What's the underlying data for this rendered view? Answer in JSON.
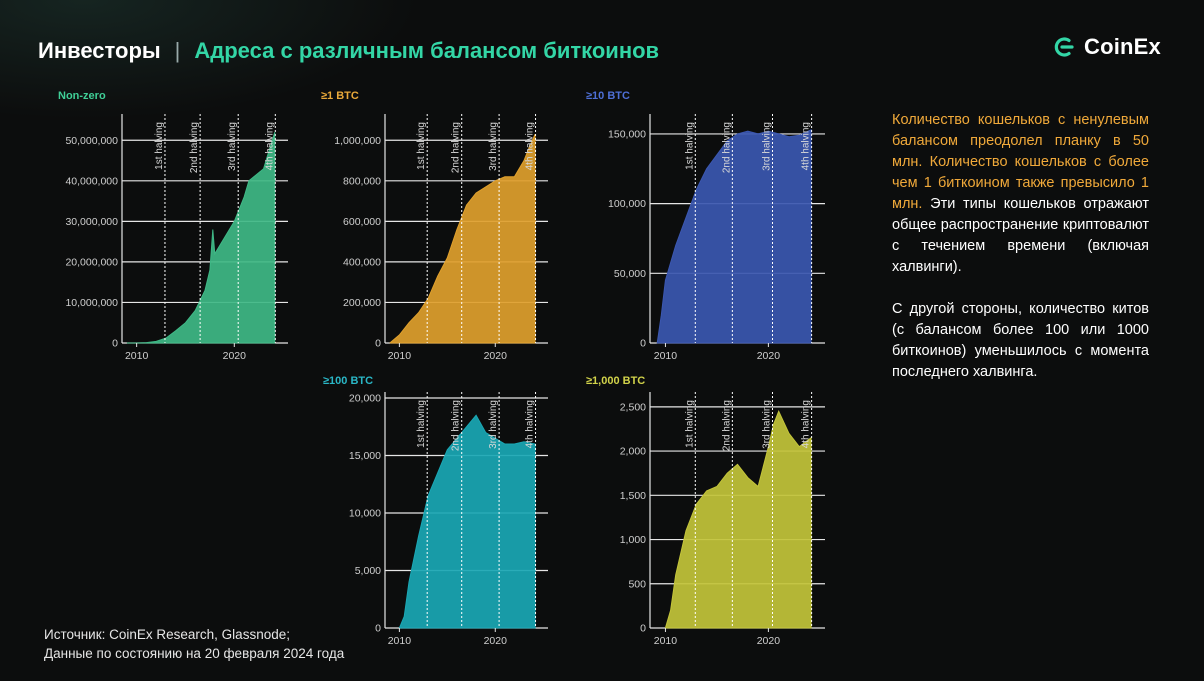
{
  "header": {
    "left": "Инвесторы",
    "separator": "|",
    "right": "Адреса с различным балансом биткоинов"
  },
  "logo": {
    "text": "CoinEx"
  },
  "description": {
    "p1_highlight": "Количество кошельков с ненулевым балансом преодолел планку в 50 млн. Количество кошельков с более чем 1 биткоином также превысило 1 млн.",
    "p1_rest": "Эти типы кошельков отражают общее распространение криптовалют с течением времени (включая халвинги).",
    "p2": "С другой стороны, количество китов (с балансом более 100 или 1000 биткоинов) уменьшилось с момента последнего халвинга."
  },
  "source": {
    "line1": "Источник: CoinEx Research, Glassnode;",
    "line2": "Данные по состоянию на 20 февраля 2024 года"
  },
  "colors": {
    "accent": "#33d6a6",
    "highlight": "#f0a93a"
  },
  "chart_data": [
    {
      "type": "area",
      "title": "Non-zero",
      "color": "#3fb886",
      "xlim": [
        2008.5,
        2025.5
      ],
      "ylim": [
        0,
        55000000
      ],
      "yticks": [
        0,
        10000000,
        20000000,
        30000000,
        40000000,
        50000000
      ],
      "ytick_labels": [
        "0",
        "10,000,000",
        "20,000,000",
        "30,000,000",
        "40,000,000",
        "50,000,000"
      ],
      "xticks": [
        2010,
        2020
      ],
      "halvings": [
        {
          "x": 2012.9,
          "label": "1st halving"
        },
        {
          "x": 2016.5,
          "label": "2nd halving"
        },
        {
          "x": 2020.4,
          "label": "3rd halving"
        },
        {
          "x": 2024.2,
          "label": "4th halving"
        }
      ],
      "x": [
        2009.0,
        2010.0,
        2011.0,
        2012.0,
        2013.0,
        2014.0,
        2015.0,
        2016.0,
        2017.0,
        2017.5,
        2017.8,
        2018.0,
        2018.5,
        2019.0,
        2020.0,
        2021.0,
        2021.5,
        2022.0,
        2023.0,
        2023.5,
        2024.15
      ],
      "values": [
        0,
        10000,
        100000,
        400000,
        1200000,
        3000000,
        5000000,
        8000000,
        13000000,
        18000000,
        28000000,
        22000000,
        24000000,
        26000000,
        30000000,
        36000000,
        40000000,
        41000000,
        43000000,
        47000000,
        52000000
      ]
    },
    {
      "type": "area",
      "title": "≥1 BTC",
      "color": "#e0a02c",
      "xlim": [
        2008.5,
        2025.5
      ],
      "ylim": [
        0,
        1100000
      ],
      "yticks": [
        0,
        200000,
        400000,
        600000,
        800000,
        1000000
      ],
      "ytick_labels": [
        "0",
        "200,000",
        "400,000",
        "600,000",
        "800,000",
        "1,000,000"
      ],
      "xticks": [
        2010,
        2020
      ],
      "halvings": [
        {
          "x": 2012.9,
          "label": "1st halving"
        },
        {
          "x": 2016.5,
          "label": "2nd halving"
        },
        {
          "x": 2020.4,
          "label": "3rd halving"
        },
        {
          "x": 2024.2,
          "label": "4th halving"
        }
      ],
      "x": [
        2009.0,
        2010.0,
        2011.0,
        2012.0,
        2013.0,
        2014.0,
        2015.0,
        2016.0,
        2017.0,
        2018.0,
        2019.0,
        2020.0,
        2021.0,
        2022.0,
        2023.0,
        2023.5,
        2024.15
      ],
      "values": [
        0,
        40000,
        100000,
        150000,
        220000,
        330000,
        420000,
        560000,
        680000,
        740000,
        770000,
        800000,
        820000,
        820000,
        900000,
        960000,
        1030000
      ]
    },
    {
      "type": "area",
      "title": "≥10 BTC",
      "color": "#3b57b0",
      "xlim": [
        2008.5,
        2025.5
      ],
      "ylim": [
        0,
        160000
      ],
      "yticks": [
        0,
        50000,
        100000,
        150000
      ],
      "ytick_labels": [
        "0",
        "50,000",
        "100,000",
        "150,000"
      ],
      "xticks": [
        2010,
        2020
      ],
      "halvings": [
        {
          "x": 2012.9,
          "label": "1st halving"
        },
        {
          "x": 2016.5,
          "label": "2nd halving"
        },
        {
          "x": 2020.4,
          "label": "3rd halving"
        },
        {
          "x": 2024.2,
          "label": "4th halving"
        }
      ],
      "x": [
        2009.2,
        2009.6,
        2010.0,
        2011.0,
        2012.0,
        2013.0,
        2014.0,
        2015.0,
        2016.0,
        2017.0,
        2018.0,
        2019.0,
        2020.0,
        2021.0,
        2022.0,
        2023.0,
        2024.15
      ],
      "values": [
        0,
        20000,
        45000,
        70000,
        90000,
        110000,
        125000,
        135000,
        145000,
        150000,
        152000,
        150000,
        152000,
        150000,
        148000,
        149000,
        153000
      ]
    },
    {
      "type": "area",
      "title": "≥100 BTC",
      "color": "#1aa7b4",
      "xlim": [
        2008.5,
        2025.5
      ],
      "ylim": [
        0,
        20000
      ],
      "yticks": [
        0,
        5000,
        10000,
        15000,
        20000
      ],
      "ytick_labels": [
        "0",
        "5,000",
        "10,000",
        "15,000",
        "20,000"
      ],
      "xticks": [
        2010,
        2020
      ],
      "halvings": [
        {
          "x": 2012.9,
          "label": "1st halving"
        },
        {
          "x": 2016.5,
          "label": "2nd halving"
        },
        {
          "x": 2020.4,
          "label": "3rd halving"
        },
        {
          "x": 2024.2,
          "label": "4th halving"
        }
      ],
      "x": [
        2010.0,
        2010.5,
        2011.0,
        2012.0,
        2013.0,
        2014.0,
        2015.0,
        2016.0,
        2017.0,
        2018.0,
        2019.0,
        2020.0,
        2021.0,
        2022.0,
        2023.0,
        2024.15
      ],
      "values": [
        0,
        1000,
        4000,
        8000,
        11500,
        13500,
        15500,
        16500,
        17500,
        18500,
        17000,
        16500,
        16000,
        16000,
        16200,
        16000
      ]
    },
    {
      "type": "area",
      "title": "≥1,000 BTC",
      "color": "#c3c43a",
      "xlim": [
        2008.5,
        2025.5
      ],
      "ylim": [
        0,
        2600
      ],
      "yticks": [
        0,
        500,
        1000,
        1500,
        2000,
        2500
      ],
      "ytick_labels": [
        "0",
        "500",
        "1,000",
        "1,500",
        "2,000",
        "2,500"
      ],
      "xticks": [
        2010,
        2020
      ],
      "halvings": [
        {
          "x": 2012.9,
          "label": "1st halving"
        },
        {
          "x": 2016.5,
          "label": "2nd halving"
        },
        {
          "x": 2020.4,
          "label": "3rd halving"
        },
        {
          "x": 2024.2,
          "label": "4th halving"
        }
      ],
      "x": [
        2010.0,
        2010.5,
        2011.0,
        2012.0,
        2013.0,
        2014.0,
        2015.0,
        2016.0,
        2017.0,
        2018.0,
        2019.0,
        2020.0,
        2020.5,
        2021.0,
        2022.0,
        2023.0,
        2024.15
      ],
      "values": [
        0,
        200,
        600,
        1100,
        1400,
        1550,
        1600,
        1750,
        1850,
        1700,
        1600,
        2050,
        2300,
        2450,
        2200,
        2050,
        2150
      ]
    }
  ]
}
